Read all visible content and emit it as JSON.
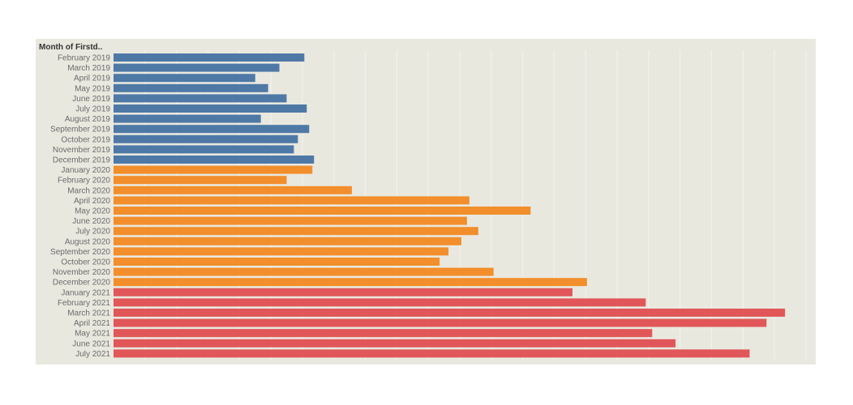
{
  "chart_data": {
    "type": "bar",
    "orientation": "horizontal",
    "row_header": "Month of Firstd..",
    "categories": [
      "February 2019",
      "March 2019",
      "April 2019",
      "May 2019",
      "June 2019",
      "July 2019",
      "August 2019",
      "September 2019",
      "October 2019",
      "November 2019",
      "December 2019",
      "January 2020",
      "February 2020",
      "March 2020",
      "April 2020",
      "May 2020",
      "June 2020",
      "July 2020",
      "August 2020",
      "September 2020",
      "October 2020",
      "November 2020",
      "December 2020",
      "January 2021",
      "February 2021",
      "March 2021",
      "April 2021",
      "May 2021",
      "June 2021",
      "July 2021"
    ],
    "values": [
      237,
      206,
      176,
      192,
      215,
      240,
      183,
      243,
      229,
      224,
      249,
      247,
      215,
      296,
      442,
      518,
      439,
      453,
      432,
      416,
      405,
      472,
      588,
      570,
      661,
      834,
      811,
      669,
      698,
      790
    ],
    "colors": [
      "#4e79a7",
      "#4e79a7",
      "#4e79a7",
      "#4e79a7",
      "#4e79a7",
      "#4e79a7",
      "#4e79a7",
      "#4e79a7",
      "#4e79a7",
      "#4e79a7",
      "#4e79a7",
      "#f28e2b",
      "#f28e2b",
      "#f28e2b",
      "#f28e2b",
      "#f28e2b",
      "#f28e2b",
      "#f28e2b",
      "#f28e2b",
      "#f28e2b",
      "#f28e2b",
      "#f28e2b",
      "#f28e2b",
      "#e15759",
      "#e15759",
      "#e15759",
      "#e15759",
      "#e15759",
      "#e15759",
      "#e15759"
    ],
    "xlim": [
      0,
      860
    ],
    "grid": true,
    "title": "",
    "xlabel": "",
    "ylabel": ""
  }
}
